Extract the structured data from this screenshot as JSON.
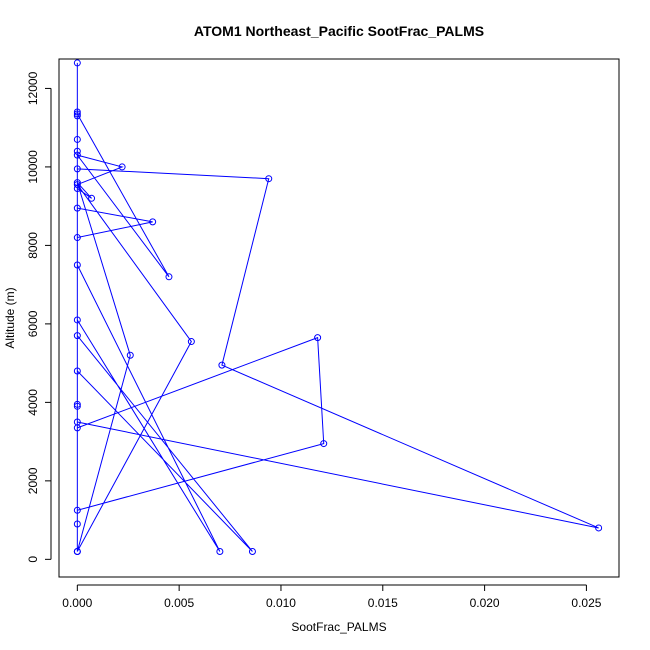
{
  "chart_data": {
    "type": "line",
    "title": "ATOM1 Northeast_Pacific SootFrac_PALMS",
    "xlabel": "SootFrac_PALMS",
    "ylabel": "Altitude (m)",
    "xlim": [
      -0.0009,
      0.0266
    ],
    "ylim": [
      -450,
      12750
    ],
    "x_ticks": [
      0.0,
      0.005,
      0.01,
      0.015,
      0.02,
      0.025
    ],
    "x_tick_labels": [
      "0.000",
      "0.005",
      "0.010",
      "0.015",
      "0.020",
      "0.025"
    ],
    "y_ticks": [
      0,
      2000,
      4000,
      6000,
      8000,
      10000,
      12000
    ],
    "y_tick_labels": [
      "0",
      "2000",
      "4000",
      "6000",
      "8000",
      "10000",
      "12000"
    ],
    "color": "#0000ff",
    "grid": false,
    "legend": "none",
    "series": [
      {
        "points": [
          [
            0.0,
            12650
          ],
          [
            0.0,
            11400
          ],
          [
            0.0,
            11350
          ],
          [
            0.0045,
            7200
          ],
          [
            0.0,
            10300
          ],
          [
            0.0022,
            10000
          ],
          [
            0.0,
            9550
          ],
          [
            0.0056,
            5550
          ],
          [
            0.0,
            200
          ],
          [
            0.0026,
            5200
          ],
          [
            0.0,
            9600
          ],
          [
            0.0007,
            9200
          ],
          [
            0.0,
            9450
          ],
          [
            0.0,
            8950
          ],
          [
            0.0037,
            8600
          ],
          [
            0.0,
            8200
          ],
          [
            0.0,
            7500
          ],
          [
            0.007,
            200
          ],
          [
            0.0,
            6100
          ],
          [
            0.0,
            5700
          ],
          [
            0.0086,
            200
          ],
          [
            0.0,
            4800
          ],
          [
            0.0,
            3950
          ],
          [
            0.0,
            3350
          ],
          [
            0.0118,
            5650
          ],
          [
            0.0121,
            2950
          ],
          [
            0.0,
            1250
          ],
          [
            0.0,
            900
          ],
          [
            0.0,
            200
          ],
          [
            0.0,
            3500
          ],
          [
            0.0256,
            800
          ],
          [
            0.0071,
            4950
          ],
          [
            0.0094,
            9700
          ],
          [
            0.0,
            9950
          ],
          [
            0.0,
            10400
          ],
          [
            0.0,
            10700
          ],
          [
            0.0,
            11300
          ],
          [
            0.0,
            3900
          ]
        ]
      }
    ]
  }
}
